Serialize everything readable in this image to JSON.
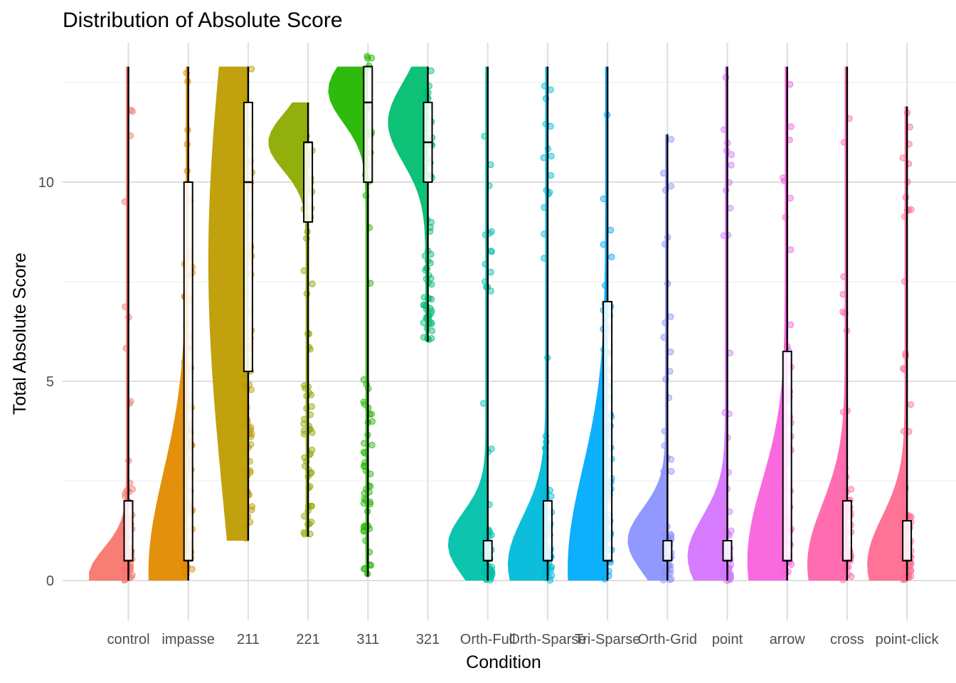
{
  "chart_data": {
    "type": "raincloud",
    "title": "Distribution of Absolute Score",
    "xlabel": "Condition",
    "ylabel": "Total Absolute Score",
    "ylim": [
      -1.0,
      13.5
    ],
    "yticks": [
      0,
      5,
      10
    ],
    "grid": true,
    "legend": "none",
    "categories": [
      "control",
      "impasse",
      "211",
      "221",
      "311",
      "321",
      "Orth-Full",
      "Orth-Sparse",
      "Tri-Sparse",
      "Orth-Grid",
      "point",
      "arrow",
      "cross",
      "point-click"
    ],
    "colors": [
      "#F8766D",
      "#E18A00",
      "#BE9C00",
      "#8CAB00",
      "#24B700",
      "#00BE70",
      "#00C1AB",
      "#00BBDA",
      "#00ACFC",
      "#8B93FF",
      "#D575FE",
      "#F962DD",
      "#FF65AC",
      "#FF6C90"
    ],
    "boxes": [
      {
        "min": 0,
        "q1": 0.5,
        "median": 0.5,
        "q3": 2,
        "max": 12.9
      },
      {
        "min": 0,
        "q1": 0.5,
        "median": 0.5,
        "q3": 10,
        "max": 12.9
      },
      {
        "min": 1,
        "q1": 5.25,
        "median": 10,
        "q3": 12,
        "max": 12.9
      },
      {
        "min": 1.1,
        "q1": 9,
        "median": 11,
        "q3": 11,
        "max": 12
      },
      {
        "min": 0.1,
        "q1": 10,
        "median": 12,
        "q3": 12.9,
        "max": 12.9
      },
      {
        "min": 6,
        "q1": 10,
        "median": 11,
        "q3": 12,
        "max": 12.9
      },
      {
        "min": 0,
        "q1": 0.5,
        "median": 0.5,
        "q3": 1,
        "max": 12.9
      },
      {
        "min": 0,
        "q1": 0.5,
        "median": 0.5,
        "q3": 2,
        "max": 12.9
      },
      {
        "min": 0,
        "q1": 0.5,
        "median": 0.5,
        "q3": 7,
        "max": 12.9
      },
      {
        "min": 0,
        "q1": 0.5,
        "median": 0.5,
        "q3": 1,
        "max": 11.2
      },
      {
        "min": 0,
        "q1": 0.5,
        "median": 0.5,
        "q3": 1,
        "max": 12.9
      },
      {
        "min": 0,
        "q1": 0.5,
        "median": 0.5,
        "q3": 5.75,
        "max": 12.9
      },
      {
        "min": 0,
        "q1": 0.5,
        "median": 0.5,
        "q3": 2,
        "max": 12.9
      },
      {
        "min": 0,
        "q1": 0.5,
        "median": 0.5,
        "q3": 1.5,
        "max": 11.9
      }
    ],
    "density_peaks": [
      {
        "mode": 0.1,
        "spread": 0.7
      },
      {
        "mode": 0.2,
        "spread": 2.5
      },
      {
        "mode": 8,
        "spread": 6
      },
      {
        "mode": 11,
        "spread": 0.7
      },
      {
        "mode": 12.3,
        "spread": 0.8
      },
      {
        "mode": 11.5,
        "spread": 1
      },
      {
        "mode": 0.9,
        "spread": 0.8
      },
      {
        "mode": 0.4,
        "spread": 1.2
      },
      {
        "mode": 0.3,
        "spread": 2.5
      },
      {
        "mode": 1,
        "spread": 0.8
      },
      {
        "mode": 0.6,
        "spread": 1
      },
      {
        "mode": 0.5,
        "spread": 2
      },
      {
        "mode": 0.4,
        "spread": 1.5
      },
      {
        "mode": 0.4,
        "spread": 1.2
      }
    ]
  }
}
